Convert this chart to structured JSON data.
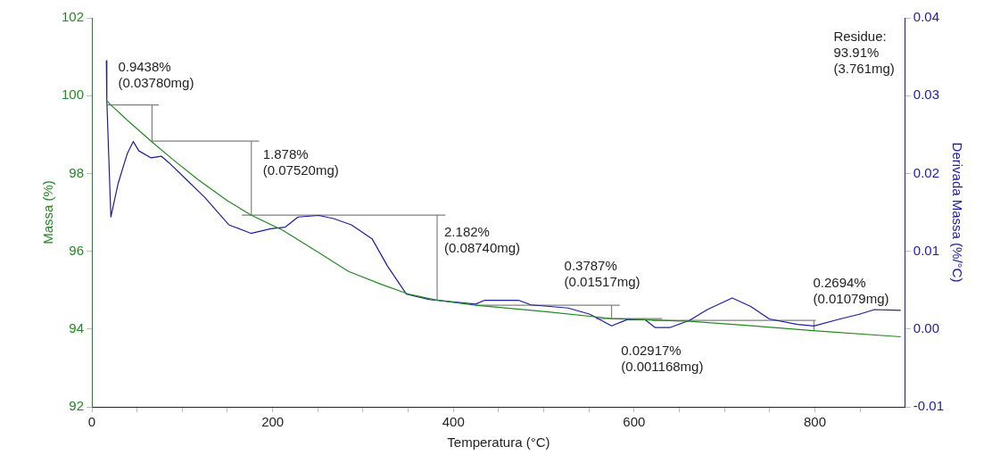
{
  "chart_data": {
    "type": "line",
    "xlabel": "Temperatura (°C)",
    "ylabel": "Massa (%)",
    "y2label": "Derivada Massa (%/°C)",
    "xlim": [
      0,
      900
    ],
    "xticks": [
      0,
      {
        "value": 50,
        "label": null
      },
      {
        "value": 100,
        "label": null
      },
      {
        "value": 150,
        "label": null
      },
      200,
      {
        "value": 250,
        "label": null
      },
      {
        "value": 300,
        "label": null
      },
      {
        "value": 350,
        "label": null
      },
      400,
      {
        "value": 450,
        "label": null
      },
      {
        "value": 500,
        "label": null
      },
      {
        "value": 550,
        "label": null
      },
      600,
      {
        "value": 650,
        "label": null
      },
      {
        "value": 700,
        "label": null
      },
      {
        "value": 750,
        "label": null
      },
      800,
      {
        "value": 850,
        "label": null
      }
    ],
    "ylim": [
      92,
      102
    ],
    "yticks": [
      92,
      94,
      96,
      98,
      100,
      102
    ],
    "y2lim": [
      -0.01,
      0.04
    ],
    "y2ticks": [
      -0.01,
      {
        "value": 0,
        "label": "0.00"
      },
      0.01,
      0.02,
      0.03,
      0.04
    ],
    "series": [
      {
        "color": "#208a20",
        "x": [
          17,
          21,
          40,
          65.5,
          90,
          118,
          150,
          176,
          211,
          250,
          284,
          320,
          350,
          380,
          424.5,
          500,
          575,
          661,
          720,
          798,
          895
        ],
        "values": [
          99.86,
          99.76,
          99.35,
          98.83,
          98.35,
          97.83,
          97.3,
          96.93,
          96.54,
          95.98,
          95.48,
          95.15,
          94.9,
          94.75,
          94.61,
          94.45,
          94.27,
          94.2,
          94.1,
          93.96,
          93.8
        ]
      },
      {
        "axis": "y2",
        "color": "#1c1ca0",
        "x": [
          16,
          16.5,
          21,
          29,
          39,
          45.7,
          52,
          65.5,
          77,
          85,
          102,
          125,
          151.5,
          176,
          198,
          214,
          228,
          251,
          267.5,
          287,
          310,
          327,
          348,
          373,
          424.5,
          434.7,
          472,
          486,
          527,
          551,
          575,
          592,
          612,
          623,
          640,
          661,
          681,
          708.5,
          729,
          749.5,
          780.5,
          799,
          828,
          849,
          866,
          895
        ],
        "values": [
          0.0345,
          0.0294,
          0.0144,
          0.0187,
          0.0225,
          0.0241,
          0.0229,
          0.022,
          0.0222,
          0.0214,
          0.0195,
          0.0169,
          0.0134,
          0.0123,
          0.0129,
          0.0131,
          0.0144,
          0.0146,
          0.0142,
          0.0134,
          0.0116,
          0.0081,
          0.0045,
          0.0038,
          0.0032,
          0.0037,
          0.0037,
          0.0031,
          0.0027,
          0.0019,
          0.0004,
          0.0012,
          0.0012,
          0.0002,
          0.0002,
          0.0011,
          0.0025,
          0.004,
          0.0029,
          0.0013,
          0.0006,
          0.0004,
          0.0013,
          0.0019,
          0.0025,
          0.0024
        ]
      },
      {
        "color": "#808080",
        "x": [
          17,
          74,
          null,
          66.5,
          66.5,
          null,
          66,
          185,
          null,
          176.4,
          176.4,
          null,
          166,
          391,
          null,
          382,
          382,
          null,
          424.5,
          584,
          null,
          575,
          575,
          null,
          558,
          631,
          null,
          620,
          801,
          null,
          799,
          799
        ],
        "values": [
          99.76,
          99.76,
          null,
          99.76,
          98.83,
          null,
          98.83,
          98.83,
          null,
          98.83,
          96.93,
          null,
          96.93,
          96.93,
          null,
          96.93,
          94.76,
          null,
          94.61,
          94.61,
          null,
          94.61,
          94.27,
          null,
          94.27,
          94.27,
          null,
          94.22,
          94.22,
          null,
          94.22,
          93.96
        ]
      }
    ],
    "annotations": [
      "0.9438%\n(0.03780mg)",
      "1.878%\n(0.07520mg)",
      "2.182%\n(0.08740mg)",
      "0.3787%\n(0.01517mg)",
      "0.02917%\n(0.001168mg)",
      "0.2694%\n(0.01079mg)",
      "Residue:\n93.91%\n(3.761mg)"
    ]
  }
}
